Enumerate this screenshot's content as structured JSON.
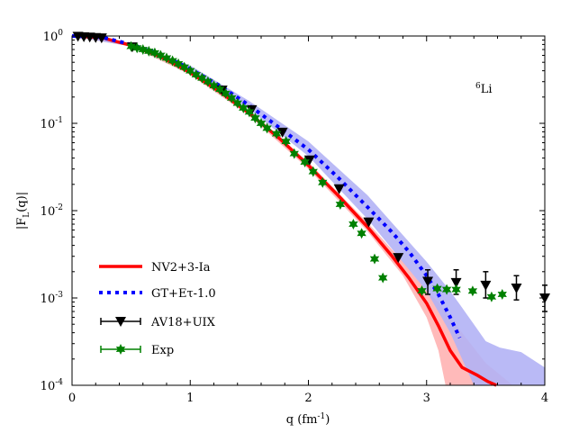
{
  "chart_data": {
    "type": "line",
    "xlabel": "q (fm",
    "xlabel_sup": "-1",
    "xlabel_end": ")",
    "ylabel": "|F",
    "ylabel_sub": "L",
    "ylabel_end": "(q)|",
    "annotation": {
      "sup": "6",
      "text": "Li"
    },
    "xlim": [
      0,
      4
    ],
    "ylim": [
      0.0001,
      1
    ],
    "yscale": "log",
    "grid": false,
    "legend_placement": "bottom-left",
    "xticks": [
      "0",
      "1",
      "2",
      "3",
      "4"
    ],
    "yticks": [
      {
        "base": "10",
        "exp": "0"
      },
      {
        "base": "10",
        "exp": "-1"
      },
      {
        "base": "10",
        "exp": "-2"
      },
      {
        "base": "10",
        "exp": "-3"
      },
      {
        "base": "10",
        "exp": "-4"
      }
    ],
    "series": [
      {
        "name": "NV2+3-Ia",
        "style": "solid-line",
        "color": "#ff0000",
        "band_color": "#ffb3b3",
        "points": [
          [
            0,
            1
          ],
          [
            0.25,
            0.96
          ],
          [
            0.5,
            0.78
          ],
          [
            0.75,
            0.58
          ],
          [
            1,
            0.38
          ],
          [
            1.25,
            0.23
          ],
          [
            1.5,
            0.13
          ],
          [
            1.75,
            0.068
          ],
          [
            2,
            0.033
          ],
          [
            2.25,
            0.015
          ],
          [
            2.5,
            0.0065
          ],
          [
            2.7,
            0.0031
          ],
          [
            2.85,
            0.0017
          ],
          [
            3.0,
            0.00087
          ],
          [
            3.1,
            0.00048
          ],
          [
            3.2,
            0.00025
          ],
          [
            3.3,
            0.00016
          ],
          [
            3.43,
            0.00013
          ],
          [
            3.52,
            0.00011
          ],
          [
            3.59,
            0.0001
          ]
        ],
        "band": [
          [
            0,
            0.99,
            1
          ],
          [
            0.5,
            0.76,
            0.8
          ],
          [
            1,
            0.36,
            0.4
          ],
          [
            1.5,
            0.122,
            0.138
          ],
          [
            2,
            0.03,
            0.036
          ],
          [
            2.5,
            0.0058,
            0.0073
          ],
          [
            2.8,
            0.0018,
            0.0026
          ],
          [
            3.0,
            0.0006,
            0.0012
          ],
          [
            3.1,
            0.00025,
            0.0009
          ],
          [
            3.16,
            0.0001,
            0.0007
          ],
          [
            3.3,
            0.0001,
            0.0004
          ],
          [
            3.5,
            0.0001,
            0.00018
          ],
          [
            3.73,
            0.0001,
            0.0001
          ]
        ]
      },
      {
        "name": "GT+Eτ-1.0",
        "style": "dotted-line",
        "color": "#0000ff",
        "band_color": "#b3b3f5",
        "points": [
          [
            0,
            1
          ],
          [
            0.25,
            0.97
          ],
          [
            0.5,
            0.8
          ],
          [
            0.75,
            0.62
          ],
          [
            1,
            0.42
          ],
          [
            1.25,
            0.27
          ],
          [
            1.5,
            0.16
          ],
          [
            1.75,
            0.09
          ],
          [
            2,
            0.05
          ],
          [
            2.25,
            0.024
          ],
          [
            2.5,
            0.011
          ],
          [
            2.7,
            0.0058
          ],
          [
            2.85,
            0.0034
          ],
          [
            3.0,
            0.0018
          ],
          [
            3.1,
            0.0011
          ],
          [
            3.2,
            0.0006
          ],
          [
            3.28,
            0.00035
          ]
        ],
        "band": [
          [
            0,
            0.99,
            1
          ],
          [
            0.5,
            0.76,
            0.84
          ],
          [
            1,
            0.39,
            0.46
          ],
          [
            1.5,
            0.145,
            0.18
          ],
          [
            2,
            0.042,
            0.062
          ],
          [
            2.5,
            0.008,
            0.015
          ],
          [
            3.0,
            0.0012,
            0.0026
          ],
          [
            3.2,
            0.0004,
            0.0012
          ],
          [
            3.4,
            0.0001,
            0.0005
          ],
          [
            3.5,
            0.0001,
            0.00032
          ],
          [
            3.62,
            0.0001,
            0.00027
          ],
          [
            3.8,
            0.0001,
            0.00024
          ],
          [
            4.0,
            0.0001,
            0.00016
          ]
        ]
      },
      {
        "name": "AV18+UIX",
        "style": "triangle-down-markers",
        "color": "#000000",
        "points": [
          [
            0.05,
            0.99
          ],
          [
            0.1,
            0.98
          ],
          [
            0.15,
            0.97
          ],
          [
            0.2,
            0.96
          ],
          [
            0.25,
            0.95
          ],
          [
            0.51,
            0.75
          ],
          [
            1.27,
            0.24
          ],
          [
            1.52,
            0.143
          ],
          [
            1.78,
            0.079
          ],
          [
            2.01,
            0.038
          ],
          [
            2.26,
            0.0178
          ],
          [
            2.51,
            0.0074
          ],
          [
            2.76,
            0.0029
          ],
          [
            3.01,
            0.00155
          ],
          [
            3.25,
            0.0015
          ],
          [
            3.5,
            0.0014
          ],
          [
            3.76,
            0.0013
          ],
          [
            4.0,
            0.001
          ]
        ],
        "errors": [
          [
            3.01,
            0.0011,
            0.0021
          ],
          [
            3.25,
            0.0011,
            0.0021
          ],
          [
            3.5,
            0.001,
            0.002
          ],
          [
            3.76,
            0.00095,
            0.0018
          ],
          [
            4.0,
            0.0007,
            0.0014
          ]
        ]
      },
      {
        "name": "Exp",
        "style": "star-markers",
        "color": "#008000",
        "points": [
          [
            0.5,
            0.76
          ],
          [
            0.55,
            0.73
          ],
          [
            0.6,
            0.7
          ],
          [
            0.65,
            0.67
          ],
          [
            0.7,
            0.64
          ],
          [
            0.75,
            0.6
          ],
          [
            0.8,
            0.56
          ],
          [
            0.85,
            0.52
          ],
          [
            0.9,
            0.48
          ],
          [
            0.95,
            0.44
          ],
          [
            1.0,
            0.4
          ],
          [
            1.05,
            0.36
          ],
          [
            1.1,
            0.33
          ],
          [
            1.15,
            0.3
          ],
          [
            1.2,
            0.27
          ],
          [
            1.25,
            0.245
          ],
          [
            1.3,
            0.22
          ],
          [
            1.35,
            0.195
          ],
          [
            1.4,
            0.17
          ],
          [
            1.45,
            0.15
          ],
          [
            1.5,
            0.135
          ],
          [
            1.55,
            0.115
          ],
          [
            1.6,
            0.1
          ],
          [
            1.65,
            0.088
          ],
          [
            1.73,
            0.076
          ],
          [
            1.81,
            0.062
          ],
          [
            1.88,
            0.045
          ],
          [
            1.97,
            0.036
          ],
          [
            2.04,
            0.028
          ],
          [
            2.12,
            0.021
          ],
          [
            2.27,
            0.0118
          ],
          [
            2.38,
            0.007
          ],
          [
            2.45,
            0.0055
          ],
          [
            2.56,
            0.0028
          ],
          [
            2.63,
            0.0017
          ],
          [
            2.96,
            0.00121
          ],
          [
            3.09,
            0.00128
          ],
          [
            3.17,
            0.00125
          ],
          [
            3.25,
            0.00125
          ],
          [
            3.39,
            0.0012
          ],
          [
            3.55,
            0.00103
          ],
          [
            3.64,
            0.0011
          ]
        ]
      }
    ]
  }
}
